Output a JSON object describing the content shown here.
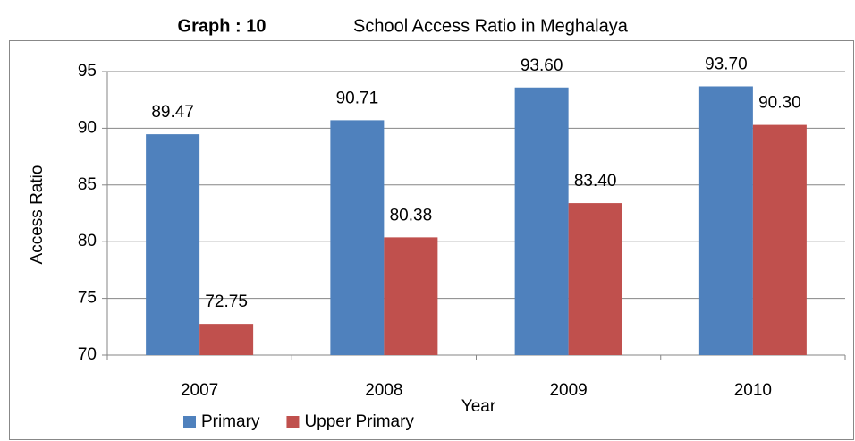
{
  "chart_data": {
    "type": "bar",
    "title_label": "Graph : 10",
    "title": "School Access Ratio in Meghalaya",
    "x_label": "Year",
    "y_label": "Access Ratio",
    "categories": [
      "2007",
      "2008",
      "2009",
      "2010"
    ],
    "series": [
      {
        "name": "Primary",
        "color": "#4f81bd",
        "values": [
          89.47,
          90.71,
          93.6,
          93.7
        ],
        "value_labels": [
          "89.47",
          "90.71",
          "93.60",
          "93.70"
        ]
      },
      {
        "name": "Upper Primary",
        "color": "#c0504d",
        "values": [
          72.75,
          80.38,
          83.4,
          90.3
        ],
        "value_labels": [
          "72.75",
          "80.38",
          "83.40",
          "90.30"
        ]
      }
    ],
    "ylim": [
      70,
      95
    ],
    "yticks": [
      70,
      75,
      80,
      85,
      90,
      95
    ],
    "grid": true,
    "legend": "bottom"
  }
}
